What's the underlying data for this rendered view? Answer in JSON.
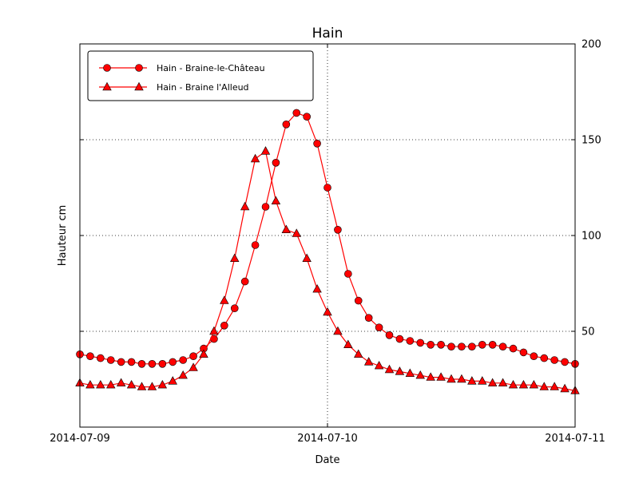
{
  "chart_data": {
    "type": "line",
    "title": "Hain",
    "xlabel": "Date",
    "ylabel": "Hauteur cm",
    "x_unit": "hours since 2014-07-09 00:00",
    "xlim": [
      0,
      48
    ],
    "ylim": [
      0,
      200
    ],
    "grid": "dotted",
    "legend_position": "upper left",
    "xticks": [
      {
        "value": 0,
        "label": "2014-07-09"
      },
      {
        "value": 24,
        "label": "2014-07-10"
      },
      {
        "value": 48,
        "label": "2014-07-11"
      }
    ],
    "yticks": [
      50,
      100,
      150,
      200
    ],
    "colors": {
      "line": "#ff0000",
      "marker_face": "#ff0000",
      "marker_edge": "#000000",
      "grid": "#000000",
      "frame": "#000000"
    },
    "series": [
      {
        "name": "Hain - Braine-le-Château",
        "marker": "circle",
        "color": "#ff0000",
        "x": [
          0,
          1,
          2,
          3,
          4,
          5,
          6,
          7,
          8,
          9,
          10,
          11,
          12,
          13,
          14,
          15,
          16,
          17,
          18,
          19,
          20,
          21,
          22,
          23,
          24,
          25,
          26,
          27,
          28,
          29,
          30,
          31,
          32,
          33,
          34,
          35,
          36,
          37,
          38,
          39,
          40,
          41,
          42,
          43,
          44,
          45,
          46,
          47,
          48
        ],
        "values": [
          38,
          37,
          36,
          35,
          34,
          34,
          33,
          33,
          33,
          34,
          35,
          37,
          41,
          46,
          53,
          62,
          76,
          95,
          115,
          138,
          158,
          164,
          162,
          148,
          125,
          103,
          80,
          66,
          57,
          52,
          48,
          46,
          45,
          44,
          43,
          43,
          42,
          42,
          42,
          43,
          43,
          42,
          41,
          39,
          37,
          36,
          35,
          34,
          33
        ]
      },
      {
        "name": "Hain - Braine l'Alleud",
        "marker": "triangle",
        "color": "#ff0000",
        "x": [
          0,
          1,
          2,
          3,
          4,
          5,
          6,
          7,
          8,
          9,
          10,
          11,
          12,
          13,
          14,
          15,
          16,
          17,
          18,
          19,
          20,
          21,
          22,
          23,
          24,
          25,
          26,
          27,
          28,
          29,
          30,
          31,
          32,
          33,
          34,
          35,
          36,
          37,
          38,
          39,
          40,
          41,
          42,
          43,
          44,
          45,
          46,
          47,
          48
        ],
        "values": [
          23,
          22,
          22,
          22,
          23,
          22,
          21,
          21,
          22,
          24,
          27,
          31,
          38,
          50,
          66,
          88,
          115,
          140,
          144,
          118,
          103,
          101,
          88,
          72,
          60,
          50,
          43,
          38,
          34,
          32,
          30,
          29,
          28,
          27,
          26,
          26,
          25,
          25,
          24,
          24,
          23,
          23,
          22,
          22,
          22,
          21,
          21,
          20,
          19
        ]
      }
    ]
  }
}
